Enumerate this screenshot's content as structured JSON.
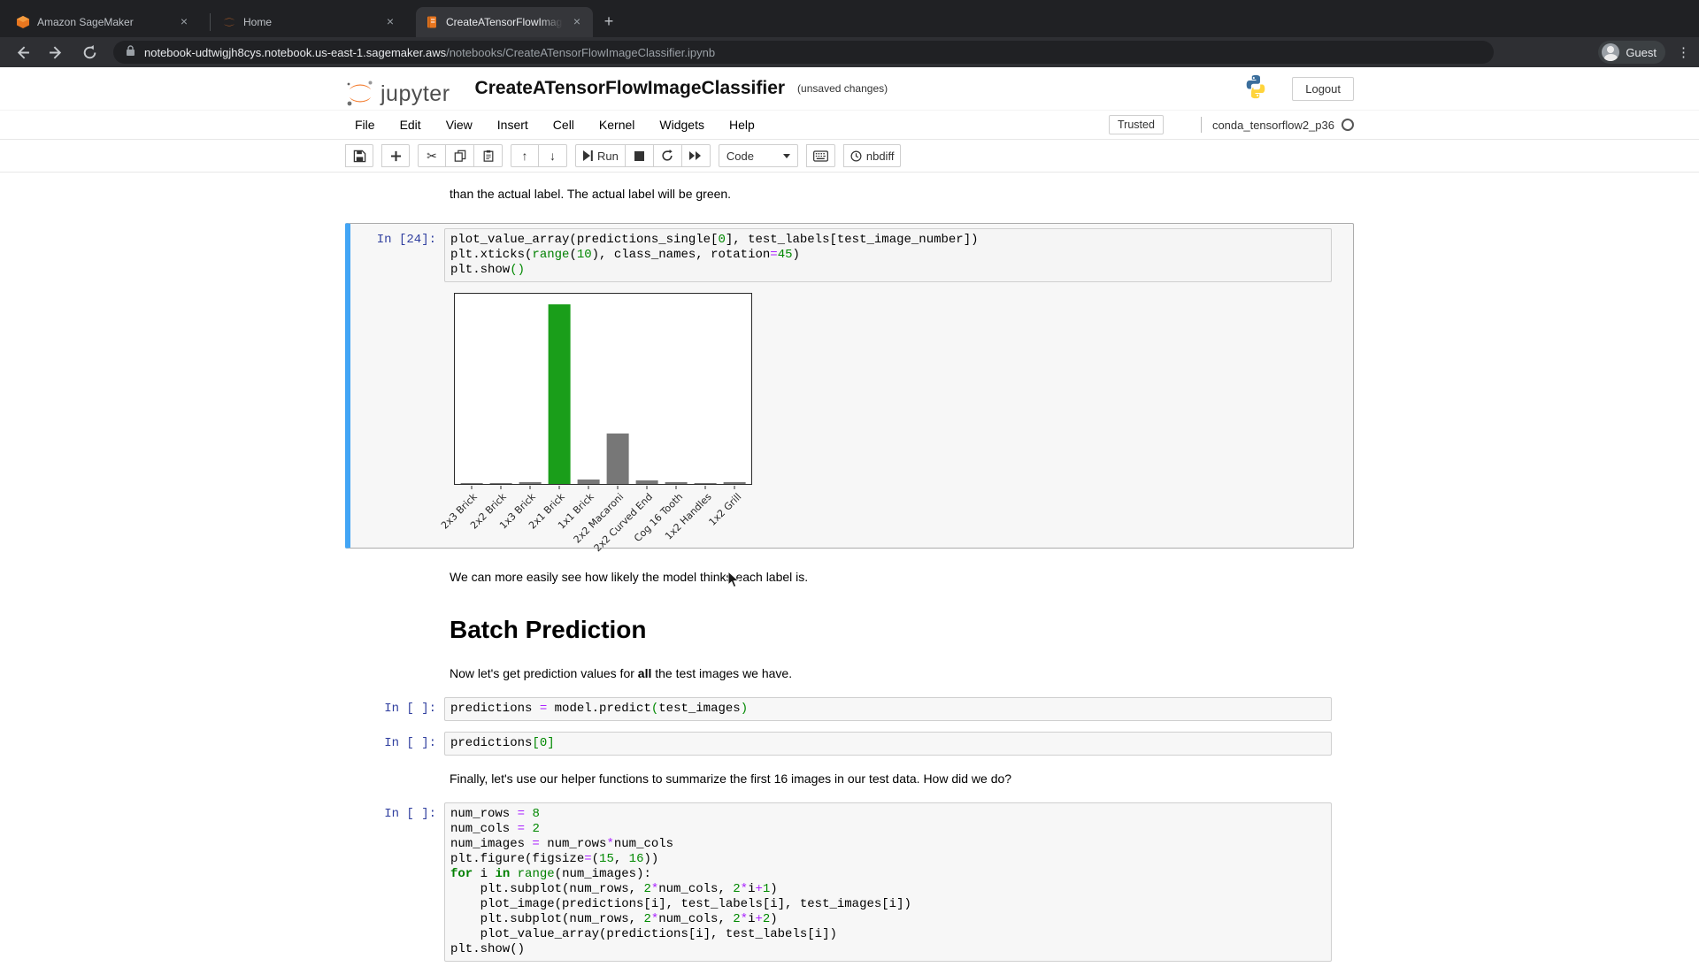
{
  "browser": {
    "tabs": [
      {
        "label": "Amazon SageMaker",
        "icon": "sagemaker-icon"
      },
      {
        "label": "Home",
        "icon": "jupyter-icon"
      },
      {
        "label": "CreateATensorFlowImageClass",
        "icon": "notebook-icon"
      }
    ],
    "close_glyph": "×",
    "new_tab_glyph": "+",
    "url_domain": "notebook-udtwigjh8cys.notebook.us-east-1.sagemaker.aws",
    "url_path": "/notebooks/CreateATensorFlowImageClassifier.ipynb",
    "profile_label": "Guest"
  },
  "jupyter": {
    "brand": "jupyter",
    "title": "CreateATensorFlowImageClassifier",
    "status": "(unsaved changes)",
    "logout_label": "Logout",
    "menu": [
      "File",
      "Edit",
      "View",
      "Insert",
      "Cell",
      "Kernel",
      "Widgets",
      "Help"
    ],
    "trusted_label": "Trusted",
    "kernel_name": "conda_tensorflow2_p36",
    "toolbar": {
      "run_label": "Run",
      "cell_type_value": "Code",
      "nbdiff_label": "nbdiff"
    }
  },
  "colors": {
    "selected_cell_accent": "#42a5f5",
    "prompt_blue": "#303f9f",
    "bar_gray": "#777777",
    "bar_green": "#1a9e1a"
  },
  "notebook": {
    "cells": [
      {
        "type": "markdown",
        "segments": [
          {
            "t": "than the actual label. The actual label will be green."
          }
        ]
      },
      {
        "type": "code",
        "prompt": "In [24]:",
        "selected": true,
        "output": "chart",
        "lines": [
          [
            {
              "c": "p",
              "t": "plot_value_array(predictions_single["
            },
            {
              "c": "n",
              "t": "0"
            },
            {
              "c": "p",
              "t": "], test_labels[test_image_number])"
            }
          ],
          [
            {
              "c": "p",
              "t": "plt.xticks("
            },
            {
              "c": "b",
              "t": "range"
            },
            {
              "c": "p",
              "t": "("
            },
            {
              "c": "n",
              "t": "10"
            },
            {
              "c": "p",
              "t": "), class_names, rotation"
            },
            {
              "c": "o",
              "t": "="
            },
            {
              "c": "n",
              "t": "45"
            },
            {
              "c": "p",
              "t": ")"
            }
          ],
          [
            {
              "c": "p",
              "t": "plt.show"
            },
            {
              "c": "g",
              "t": "()"
            }
          ]
        ]
      },
      {
        "type": "markdown",
        "segments": [
          {
            "t": "We can more easily see how likely the model thinks each label is."
          }
        ]
      },
      {
        "type": "heading",
        "text": "Batch Prediction"
      },
      {
        "type": "markdown",
        "segments": [
          {
            "t": "Now let's get prediction values for "
          },
          {
            "t": "all",
            "b": true
          },
          {
            "t": " the test images we have."
          }
        ]
      },
      {
        "type": "code",
        "prompt": "In [ ]:",
        "lines": [
          [
            {
              "c": "p",
              "t": "predictions "
            },
            {
              "c": "o",
              "t": "="
            },
            {
              "c": "p",
              "t": " model.predict"
            },
            {
              "c": "g",
              "t": "("
            },
            {
              "c": "p",
              "t": "test_images"
            },
            {
              "c": "g",
              "t": ")"
            }
          ]
        ]
      },
      {
        "type": "code",
        "prompt": "In [ ]:",
        "lines": [
          [
            {
              "c": "p",
              "t": "predictions"
            },
            {
              "c": "g",
              "t": "["
            },
            {
              "c": "n",
              "t": "0"
            },
            {
              "c": "g",
              "t": "]"
            }
          ]
        ]
      },
      {
        "type": "markdown",
        "segments": [
          {
            "t": "Finally, let's use our helper functions to summarize the first 16 images in our test data. How did we do?"
          }
        ]
      },
      {
        "type": "code",
        "prompt": "In [ ]:",
        "lines": [
          [
            {
              "c": "p",
              "t": "num_rows "
            },
            {
              "c": "o",
              "t": "="
            },
            {
              "c": "p",
              "t": " "
            },
            {
              "c": "n",
              "t": "8"
            }
          ],
          [
            {
              "c": "p",
              "t": "num_cols "
            },
            {
              "c": "o",
              "t": "="
            },
            {
              "c": "p",
              "t": " "
            },
            {
              "c": "n",
              "t": "2"
            }
          ],
          [
            {
              "c": "p",
              "t": "num_images "
            },
            {
              "c": "o",
              "t": "="
            },
            {
              "c": "p",
              "t": " num_rows"
            },
            {
              "c": "o",
              "t": "*"
            },
            {
              "c": "p",
              "t": "num_cols"
            }
          ],
          [
            {
              "c": "p",
              "t": "plt.figure(figsize"
            },
            {
              "c": "o",
              "t": "="
            },
            {
              "c": "p",
              "t": "("
            },
            {
              "c": "n",
              "t": "15"
            },
            {
              "c": "p",
              "t": ", "
            },
            {
              "c": "n",
              "t": "16"
            },
            {
              "c": "p",
              "t": "))"
            }
          ],
          [
            {
              "c": "k",
              "t": "for"
            },
            {
              "c": "p",
              "t": " i "
            },
            {
              "c": "k",
              "t": "in"
            },
            {
              "c": "p",
              "t": " "
            },
            {
              "c": "b",
              "t": "range"
            },
            {
              "c": "p",
              "t": "(num_images):"
            }
          ],
          [
            {
              "c": "p",
              "t": "    plt.subplot(num_rows, "
            },
            {
              "c": "n",
              "t": "2"
            },
            {
              "c": "o",
              "t": "*"
            },
            {
              "c": "p",
              "t": "num_cols, "
            },
            {
              "c": "n",
              "t": "2"
            },
            {
              "c": "o",
              "t": "*"
            },
            {
              "c": "p",
              "t": "i"
            },
            {
              "c": "o",
              "t": "+"
            },
            {
              "c": "n",
              "t": "1"
            },
            {
              "c": "p",
              "t": ")"
            }
          ],
          [
            {
              "c": "p",
              "t": "    plot_image(predictions[i], test_labels[i], test_images[i])"
            }
          ],
          [
            {
              "c": "p",
              "t": "    plt.subplot(num_rows, "
            },
            {
              "c": "n",
              "t": "2"
            },
            {
              "c": "o",
              "t": "*"
            },
            {
              "c": "p",
              "t": "num_cols, "
            },
            {
              "c": "n",
              "t": "2"
            },
            {
              "c": "o",
              "t": "*"
            },
            {
              "c": "p",
              "t": "i"
            },
            {
              "c": "o",
              "t": "+"
            },
            {
              "c": "n",
              "t": "2"
            },
            {
              "c": "p",
              "t": ")"
            }
          ],
          [
            {
              "c": "p",
              "t": "    plot_value_array(predictions[i], test_labels[i])"
            }
          ],
          [
            {
              "c": "p",
              "t": "plt.show()"
            }
          ]
        ]
      }
    ]
  },
  "chart_data": {
    "type": "bar",
    "title": "",
    "xlabel": "",
    "ylabel": "",
    "categories": [
      "2x3 Brick",
      "2x2 Brick",
      "1x3 Brick",
      "2x1 Brick",
      "1x1 Brick",
      "2x2 Macaroni",
      "2x2 Curved End",
      "Cog 16 Tooth",
      "1x2 Handles",
      "1x2 Grill"
    ],
    "values": [
      0.002,
      0.006,
      0.008,
      0.945,
      0.025,
      0.267,
      0.02,
      0.007,
      0.004,
      0.01
    ],
    "highlight_index": 3,
    "bar_color": "#777777",
    "highlight_color": "#1a9e1a",
    "ylim": [
      0,
      1
    ],
    "xtick_rotation": 45,
    "grid": false,
    "legend": "none",
    "yticks_visible": false
  }
}
